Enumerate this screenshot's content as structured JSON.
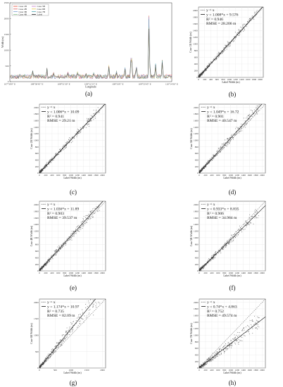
{
  "chart_data": [
    {
      "id": "a",
      "type": "line",
      "caption": "(a)",
      "xlabel": "Longitude",
      "ylabel": "Width (m)",
      "ylim": [
        0,
        2500
      ],
      "yticks": [
        "0",
        "500",
        "1000",
        "1500",
        "2000",
        "2500"
      ],
      "xticks": [
        "107°30'0\" E",
        "108°30'45\" E",
        "108°51'30\" E",
        "109°12'15\" E",
        "109°33'0\" E",
        "109°53'45\" E",
        "110°14'30\" E"
      ],
      "legend": [
        "Case 1B",
        "Case 2B",
        "Case 3B",
        "Case 4B",
        "Case 5B",
        "Case 6B",
        "Case 7B",
        "Label"
      ],
      "colors": [
        "#e34a33",
        "#d95f5f",
        "#7a9cd1",
        "#8dc58f",
        "#c77bc7",
        "#e6c44d",
        "#4aa6b0",
        "#222222"
      ],
      "spikes": [
        [
          0.07,
          180
        ],
        [
          0.14,
          380
        ],
        [
          0.19,
          250
        ],
        [
          0.23,
          420
        ],
        [
          0.27,
          300
        ],
        [
          0.31,
          220
        ],
        [
          0.36,
          340
        ],
        [
          0.42,
          460
        ],
        [
          0.47,
          260
        ],
        [
          0.52,
          430
        ],
        [
          0.56,
          240
        ],
        [
          0.61,
          650
        ],
        [
          0.66,
          380
        ],
        [
          0.71,
          560
        ],
        [
          0.75,
          1300
        ],
        [
          0.78,
          700
        ],
        [
          0.86,
          2400
        ],
        [
          0.9,
          500
        ],
        [
          0.94,
          760
        ],
        [
          0.98,
          320
        ]
      ]
    },
    {
      "id": "b",
      "type": "scatter",
      "caption": "(b)",
      "xlabel": "Label Width (m)",
      "ylabel": "Case 1B Width (m)",
      "lim": [
        0,
        2100
      ],
      "ticks": [
        0,
        200,
        400,
        600,
        800,
        1000,
        1200,
        1400,
        1600,
        1800,
        2000
      ],
      "legend_identity": "y = x",
      "fit": {
        "slope": 1.008,
        "intercept": 9.576,
        "label": "y = 1.008*x + 9.576"
      },
      "r2": "R² = 0.946",
      "rmse": "RMSE = 28.206 m",
      "spread": 0.08
    },
    {
      "id": "c",
      "type": "scatter",
      "caption": "(c)",
      "xlabel": "Label Width (m)",
      "ylabel": "Case 2B Width (m)",
      "lim": [
        0,
        2100
      ],
      "ticks": [
        0,
        200,
        400,
        600,
        800,
        1000,
        1200,
        1400,
        1600,
        1800,
        2000
      ],
      "legend_identity": "y = x",
      "fit": {
        "slope": 1.006,
        "intercept": 10.09,
        "label": "y = 1.006*x + 10.09"
      },
      "r2": "R² = 0.941",
      "rmse": "RMSE = 29.21 m",
      "spread": 0.09
    },
    {
      "id": "d",
      "type": "scatter",
      "caption": "(d)",
      "xlabel": "Label Width (m)",
      "ylabel": "Case 3B Width (m)",
      "lim": [
        0,
        2100
      ],
      "ticks": [
        0,
        200,
        400,
        600,
        800,
        1000,
        1200,
        1400,
        1600,
        1800,
        2000
      ],
      "legend_identity": "y = x",
      "fit": {
        "slope": 1.049,
        "intercept": 16.72,
        "label": "y = 1.049*x + 16.72"
      },
      "r2": "R² = 0.901",
      "rmse": "RMSE = 40.547 m",
      "spread": 0.12
    },
    {
      "id": "e",
      "type": "scatter",
      "caption": "(e)",
      "xlabel": "Label Width (m)",
      "ylabel": "Case 4B Width (m)",
      "lim": [
        0,
        2100
      ],
      "ticks": [
        0,
        200,
        400,
        600,
        800,
        1000,
        1200,
        1400,
        1600,
        1800,
        2000
      ],
      "legend_identity": "y = x",
      "fit": {
        "slope": 1.036,
        "intercept": 11.89,
        "label": "y = 1.036*x + 11.89"
      },
      "r2": "R² = 0.903",
      "rmse": "RMSE = 39.537 m",
      "spread": 0.12
    },
    {
      "id": "f",
      "type": "scatter",
      "caption": "(f)",
      "xlabel": "Label Width (m)",
      "ylabel": "Case 5B Width (m)",
      "lim": [
        0,
        2100
      ],
      "ticks": [
        0,
        200,
        400,
        600,
        800,
        1000,
        1200,
        1400,
        1600,
        1800,
        2000
      ],
      "legend_identity": "y = x",
      "fit": {
        "slope": 0.933,
        "intercept": 8.835,
        "label": "y = 0.933*x + 8.835"
      },
      "r2": "R² = 0.906",
      "rmse": "RMSE = 34.984 m",
      "spread": 0.11
    },
    {
      "id": "g",
      "type": "scatter",
      "caption": "(g)",
      "xlabel": "Label Width (m)",
      "ylabel": "Case 6B Width (m)",
      "lim": [
        0,
        2100
      ],
      "ticks": [
        0,
        500,
        1000,
        1500,
        2000
      ],
      "legend_identity": "y = x",
      "fit": {
        "slope": 1.174,
        "intercept": 10.97,
        "label": "y = 1.174*x + 10.97"
      },
      "r2": "R² = 0.735",
      "rmse": "RMSE = 82.09 m",
      "spread": 0.22
    },
    {
      "id": "h",
      "type": "scatter",
      "caption": "(h)",
      "xlabel": "Label Width (m)",
      "ylabel": "Case 7B Width (m)",
      "lim": [
        0,
        2100
      ],
      "ticks": [
        0,
        200,
        400,
        600,
        800,
        1000,
        1200,
        1400,
        1600,
        1800,
        2000
      ],
      "legend_identity": "y = x",
      "fit": {
        "slope": 0.74,
        "intercept": 4.863,
        "label": "y = 0.74*x + 4.863"
      },
      "r2": "R² = 0.752",
      "rmse": "RMSE = 49.574 m",
      "spread": 0.18
    }
  ]
}
